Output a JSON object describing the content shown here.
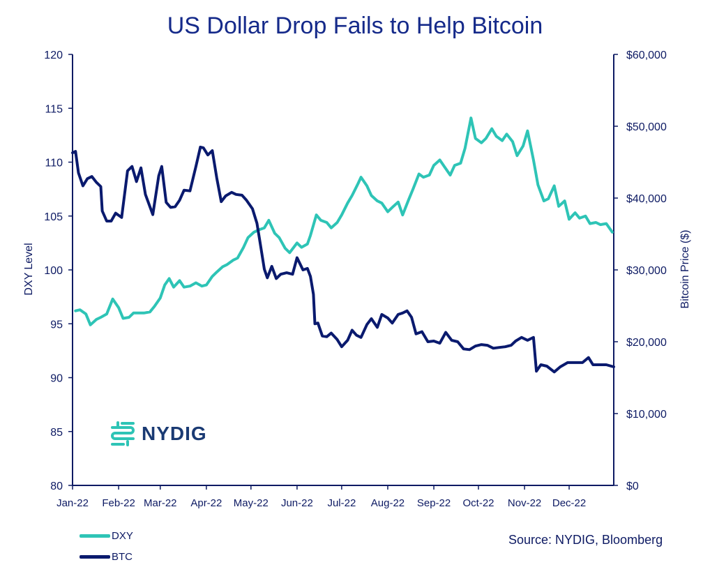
{
  "chart_data": {
    "type": "line",
    "title": "US Dollar Drop Fails to Help Bitcoin",
    "ylabel_left": "DXY Level",
    "ylabel_right": "Bitcoin Price ($)",
    "ylim_left": [
      80,
      120
    ],
    "yticks_left": [
      "80",
      "85",
      "90",
      "95",
      "100",
      "105",
      "110",
      "115",
      "120"
    ],
    "ylim_right": [
      0,
      60000
    ],
    "yticks_right": [
      "$0",
      "$10,000",
      "$20,000",
      "$30,000",
      "$40,000",
      "$50,000",
      "$60,000"
    ],
    "x_tick_labels": [
      "Jan-22",
      "Feb-22",
      "Mar-22",
      "Apr-22",
      "May-22",
      "Jun-22",
      "Jul-22",
      "Aug-22",
      "Sep-22",
      "Oct-22",
      "Nov-22",
      "Dec-22"
    ],
    "x_range": [
      "2022-01-01",
      "2022-12-31"
    ],
    "grid": false,
    "legend_position": "bottom-left",
    "source": "Source: NYDIG, Bloomberg",
    "series": [
      {
        "name": "DXY",
        "axis": "left",
        "color": "#2ec4b6",
        "points": [
          [
            "2022-01-03",
            96.2
          ],
          [
            "2022-01-06",
            96.3
          ],
          [
            "2022-01-10",
            95.9
          ],
          [
            "2022-01-13",
            94.9
          ],
          [
            "2022-01-17",
            95.4
          ],
          [
            "2022-01-20",
            95.6
          ],
          [
            "2022-01-24",
            95.9
          ],
          [
            "2022-01-28",
            97.3
          ],
          [
            "2022-02-01",
            96.5
          ],
          [
            "2022-02-04",
            95.5
          ],
          [
            "2022-02-08",
            95.6
          ],
          [
            "2022-02-11",
            96.0
          ],
          [
            "2022-02-15",
            96.0
          ],
          [
            "2022-02-18",
            96.0
          ],
          [
            "2022-02-22",
            96.1
          ],
          [
            "2022-02-25",
            96.6
          ],
          [
            "2022-03-01",
            97.4
          ],
          [
            "2022-03-04",
            98.6
          ],
          [
            "2022-03-07",
            99.2
          ],
          [
            "2022-03-10",
            98.4
          ],
          [
            "2022-03-14",
            99.0
          ],
          [
            "2022-03-17",
            98.4
          ],
          [
            "2022-03-21",
            98.5
          ],
          [
            "2022-03-25",
            98.8
          ],
          [
            "2022-03-29",
            98.5
          ],
          [
            "2022-04-01",
            98.6
          ],
          [
            "2022-04-05",
            99.4
          ],
          [
            "2022-04-08",
            99.8
          ],
          [
            "2022-04-12",
            100.3
          ],
          [
            "2022-04-15",
            100.5
          ],
          [
            "2022-04-19",
            100.9
          ],
          [
            "2022-04-22",
            101.1
          ],
          [
            "2022-04-26",
            102.1
          ],
          [
            "2022-04-29",
            103.0
          ],
          [
            "2022-05-03",
            103.5
          ],
          [
            "2022-05-06",
            103.7
          ],
          [
            "2022-05-10",
            103.9
          ],
          [
            "2022-05-13",
            104.6
          ],
          [
            "2022-05-17",
            103.4
          ],
          [
            "2022-05-20",
            103.0
          ],
          [
            "2022-05-24",
            102.0
          ],
          [
            "2022-05-27",
            101.6
          ],
          [
            "2022-06-01",
            102.5
          ],
          [
            "2022-06-04",
            102.1
          ],
          [
            "2022-06-08",
            102.4
          ],
          [
            "2022-06-10",
            103.2
          ],
          [
            "2022-06-14",
            105.1
          ],
          [
            "2022-06-17",
            104.6
          ],
          [
            "2022-06-21",
            104.4
          ],
          [
            "2022-06-24",
            103.9
          ],
          [
            "2022-06-28",
            104.4
          ],
          [
            "2022-07-01",
            105.1
          ],
          [
            "2022-07-05",
            106.2
          ],
          [
            "2022-07-08",
            106.9
          ],
          [
            "2022-07-12",
            108.0
          ],
          [
            "2022-07-14",
            108.6
          ],
          [
            "2022-07-18",
            107.8
          ],
          [
            "2022-07-21",
            106.9
          ],
          [
            "2022-07-25",
            106.4
          ],
          [
            "2022-07-28",
            106.2
          ],
          [
            "2022-08-01",
            105.4
          ],
          [
            "2022-08-04",
            105.8
          ],
          [
            "2022-08-08",
            106.3
          ],
          [
            "2022-08-11",
            105.1
          ],
          [
            "2022-08-15",
            106.5
          ],
          [
            "2022-08-18",
            107.5
          ],
          [
            "2022-08-22",
            108.9
          ],
          [
            "2022-08-25",
            108.6
          ],
          [
            "2022-08-29",
            108.8
          ],
          [
            "2022-09-01",
            109.7
          ],
          [
            "2022-09-05",
            110.2
          ],
          [
            "2022-09-08",
            109.6
          ],
          [
            "2022-09-12",
            108.8
          ],
          [
            "2022-09-15",
            109.7
          ],
          [
            "2022-09-19",
            109.9
          ],
          [
            "2022-09-22",
            111.3
          ],
          [
            "2022-09-26",
            114.1
          ],
          [
            "2022-09-29",
            112.2
          ],
          [
            "2022-10-03",
            111.8
          ],
          [
            "2022-10-06",
            112.2
          ],
          [
            "2022-10-10",
            113.1
          ],
          [
            "2022-10-13",
            112.4
          ],
          [
            "2022-10-17",
            112.0
          ],
          [
            "2022-10-20",
            112.6
          ],
          [
            "2022-10-24",
            111.9
          ],
          [
            "2022-10-27",
            110.6
          ],
          [
            "2022-10-31",
            111.5
          ],
          [
            "2022-11-03",
            112.9
          ],
          [
            "2022-11-07",
            110.2
          ],
          [
            "2022-11-10",
            107.9
          ],
          [
            "2022-11-14",
            106.4
          ],
          [
            "2022-11-17",
            106.6
          ],
          [
            "2022-11-21",
            107.8
          ],
          [
            "2022-11-24",
            105.9
          ],
          [
            "2022-11-28",
            106.4
          ],
          [
            "2022-12-01",
            104.7
          ],
          [
            "2022-12-05",
            105.3
          ],
          [
            "2022-12-08",
            104.8
          ],
          [
            "2022-12-12",
            105.0
          ],
          [
            "2022-12-15",
            104.3
          ],
          [
            "2022-12-19",
            104.4
          ],
          [
            "2022-12-22",
            104.2
          ],
          [
            "2022-12-26",
            104.3
          ],
          [
            "2022-12-30",
            103.5
          ]
        ]
      },
      {
        "name": "BTC",
        "axis": "right",
        "color": "#0a1a6e",
        "points": [
          [
            "2022-01-01",
            46300
          ],
          [
            "2022-01-03",
            46500
          ],
          [
            "2022-01-05",
            43500
          ],
          [
            "2022-01-08",
            41700
          ],
          [
            "2022-01-11",
            42700
          ],
          [
            "2022-01-14",
            43000
          ],
          [
            "2022-01-17",
            42200
          ],
          [
            "2022-01-20",
            41600
          ],
          [
            "2022-01-21",
            38200
          ],
          [
            "2022-01-24",
            36800
          ],
          [
            "2022-01-27",
            36800
          ],
          [
            "2022-01-30",
            37900
          ],
          [
            "2022-02-03",
            37300
          ],
          [
            "2022-02-07",
            43800
          ],
          [
            "2022-02-10",
            44400
          ],
          [
            "2022-02-13",
            42300
          ],
          [
            "2022-02-16",
            44200
          ],
          [
            "2022-02-19",
            40500
          ],
          [
            "2022-02-24",
            37700
          ],
          [
            "2022-02-28",
            43100
          ],
          [
            "2022-03-02",
            44400
          ],
          [
            "2022-03-05",
            39400
          ],
          [
            "2022-03-08",
            38700
          ],
          [
            "2022-03-11",
            38800
          ],
          [
            "2022-03-14",
            39700
          ],
          [
            "2022-03-17",
            41100
          ],
          [
            "2022-03-21",
            41000
          ],
          [
            "2022-03-25",
            44400
          ],
          [
            "2022-03-28",
            47100
          ],
          [
            "2022-03-30",
            47000
          ],
          [
            "2022-04-02",
            46000
          ],
          [
            "2022-04-05",
            46600
          ],
          [
            "2022-04-08",
            42800
          ],
          [
            "2022-04-11",
            39500
          ],
          [
            "2022-04-14",
            40300
          ],
          [
            "2022-04-18",
            40800
          ],
          [
            "2022-04-21",
            40500
          ],
          [
            "2022-04-25",
            40400
          ],
          [
            "2022-04-28",
            39700
          ],
          [
            "2022-05-02",
            38500
          ],
          [
            "2022-05-05",
            36500
          ],
          [
            "2022-05-07",
            34000
          ],
          [
            "2022-05-10",
            30100
          ],
          [
            "2022-05-12",
            28900
          ],
          [
            "2022-05-15",
            30500
          ],
          [
            "2022-05-18",
            28800
          ],
          [
            "2022-05-21",
            29400
          ],
          [
            "2022-05-25",
            29600
          ],
          [
            "2022-05-29",
            29400
          ],
          [
            "2022-06-01",
            31700
          ],
          [
            "2022-06-05",
            30000
          ],
          [
            "2022-06-08",
            30200
          ],
          [
            "2022-06-10",
            29100
          ],
          [
            "2022-06-12",
            26600
          ],
          [
            "2022-06-13",
            22500
          ],
          [
            "2022-06-15",
            22600
          ],
          [
            "2022-06-18",
            20800
          ],
          [
            "2022-06-21",
            20700
          ],
          [
            "2022-06-24",
            21200
          ],
          [
            "2022-06-28",
            20300
          ],
          [
            "2022-07-01",
            19300
          ],
          [
            "2022-07-05",
            20200
          ],
          [
            "2022-07-08",
            21600
          ],
          [
            "2022-07-11",
            20900
          ],
          [
            "2022-07-14",
            20600
          ],
          [
            "2022-07-18",
            22400
          ],
          [
            "2022-07-21",
            23200
          ],
          [
            "2022-07-25",
            22000
          ],
          [
            "2022-07-28",
            23800
          ],
          [
            "2022-08-01",
            23300
          ],
          [
            "2022-08-04",
            22600
          ],
          [
            "2022-08-08",
            23800
          ],
          [
            "2022-08-11",
            24000
          ],
          [
            "2022-08-14",
            24300
          ],
          [
            "2022-08-17",
            23400
          ],
          [
            "2022-08-20",
            21100
          ],
          [
            "2022-08-24",
            21400
          ],
          [
            "2022-08-28",
            20000
          ],
          [
            "2022-09-01",
            20100
          ],
          [
            "2022-09-05",
            19800
          ],
          [
            "2022-09-09",
            21300
          ],
          [
            "2022-09-13",
            20200
          ],
          [
            "2022-09-17",
            20000
          ],
          [
            "2022-09-21",
            19000
          ],
          [
            "2022-09-25",
            18900
          ],
          [
            "2022-09-29",
            19400
          ],
          [
            "2022-10-03",
            19600
          ],
          [
            "2022-10-07",
            19500
          ],
          [
            "2022-10-11",
            19100
          ],
          [
            "2022-10-15",
            19200
          ],
          [
            "2022-10-19",
            19300
          ],
          [
            "2022-10-23",
            19500
          ],
          [
            "2022-10-26",
            20100
          ],
          [
            "2022-10-30",
            20600
          ],
          [
            "2022-11-03",
            20200
          ],
          [
            "2022-11-07",
            20600
          ],
          [
            "2022-11-09",
            15900
          ],
          [
            "2022-11-12",
            16800
          ],
          [
            "2022-11-16",
            16600
          ],
          [
            "2022-11-21",
            15800
          ],
          [
            "2022-11-25",
            16500
          ],
          [
            "2022-11-30",
            17100
          ],
          [
            "2022-12-05",
            17100
          ],
          [
            "2022-12-10",
            17100
          ],
          [
            "2022-12-14",
            17800
          ],
          [
            "2022-12-17",
            16800
          ],
          [
            "2022-12-21",
            16800
          ],
          [
            "2022-12-26",
            16800
          ],
          [
            "2022-12-31",
            16500
          ]
        ]
      }
    ]
  },
  "brand": {
    "logo_text": "NYDIG",
    "logo_color": "#2ec4b6"
  },
  "icons": {
    "logo": "nydig-logo-icon"
  }
}
